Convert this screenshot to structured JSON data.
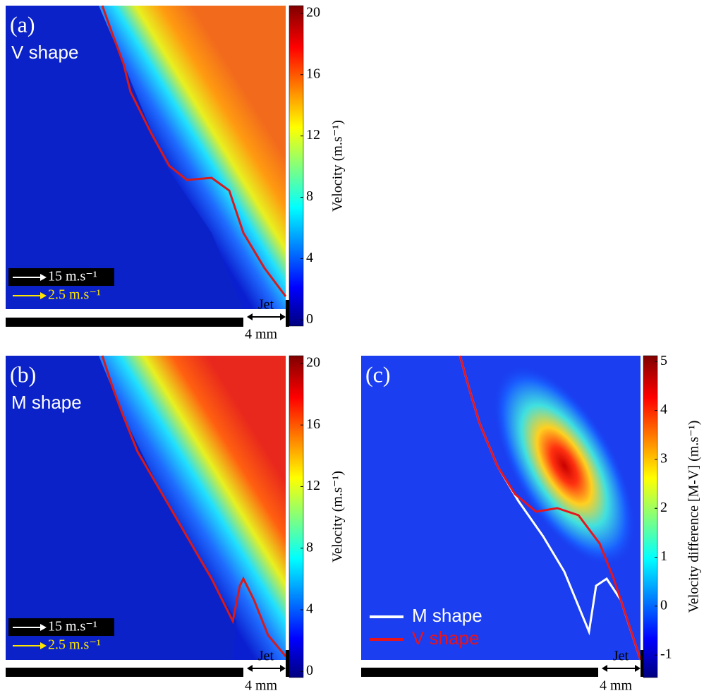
{
  "chart_data": [
    {
      "type": "heatmap",
      "panel_label": "(a)",
      "annotation": "V shape",
      "colorbar_label": "Velocity (m.s⁻¹)",
      "ylim": [
        -0.4,
        20.5
      ],
      "yticks": [
        0,
        4,
        8,
        12,
        16,
        20
      ],
      "scale_labels": [
        "15 m.s⁻¹",
        "2.5 m.s⁻¹"
      ],
      "jet_label": "Jet",
      "length_label": "4 mm"
    },
    {
      "type": "heatmap",
      "panel_label": "(b)",
      "annotation": "M shape",
      "colorbar_label": "Velocity (m.s⁻¹)",
      "ylim": [
        -0.4,
        20.5
      ],
      "yticks": [
        0,
        4,
        8,
        12,
        16,
        20
      ],
      "scale_labels": [
        "15 m.s⁻¹",
        "2.5 m.s⁻¹"
      ],
      "jet_label": "Jet",
      "length_label": "4 mm"
    },
    {
      "type": "heatmap",
      "panel_label": "(c)",
      "colorbar_label": "Velocity difference [M-V] (m.s⁻¹)",
      "ylim": [
        -1.46,
        5.12
      ],
      "yticks": [
        -1,
        0,
        1,
        2,
        3,
        4,
        5
      ],
      "series": [
        {
          "name": "M shape",
          "color": "#ffffff"
        },
        {
          "name": "V shape",
          "color": "#e8141c"
        }
      ],
      "jet_label": "Jet",
      "length_label": "4 mm"
    }
  ]
}
